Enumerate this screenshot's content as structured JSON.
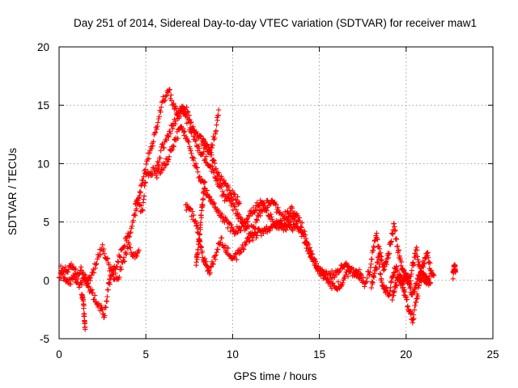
{
  "chart_data": {
    "type": "scatter",
    "title": "Day 251 of 2014, Sidereal Day-to-day VTEC variation (SDTVAR) for receiver maw1",
    "xlabel": "GPS time / hours",
    "ylabel": "SDTVAR / TECUs",
    "xlim": [
      0,
      25
    ],
    "ylim": [
      -5,
      20
    ],
    "xticks": [
      "0",
      "5",
      "10",
      "15",
      "20",
      "25"
    ],
    "yticks": [
      "-5",
      "0",
      "5",
      "10",
      "15",
      "20"
    ],
    "grid": true,
    "marker": "plus",
    "color": "#ff0000",
    "series": [
      {
        "name": "SDTVAR",
        "tracks": [
          [
            [
              0.0,
              0.6
            ],
            [
              0.3,
              0.2
            ],
            [
              0.6,
              -0.3
            ],
            [
              0.9,
              0.4
            ],
            [
              1.2,
              -0.6
            ],
            [
              1.5,
              0.2
            ],
            [
              1.8,
              -0.8
            ],
            [
              2.1,
              -1.6
            ],
            [
              2.4,
              -2.4
            ],
            [
              2.6,
              -3.2
            ],
            [
              2.8,
              -1.0
            ],
            [
              3.0,
              0.6
            ],
            [
              3.3,
              1.2
            ],
            [
              3.6,
              2.6
            ],
            [
              3.9,
              3.6
            ],
            [
              4.2,
              4.4
            ],
            [
              4.5,
              6.6
            ],
            [
              4.8,
              6.0
            ],
            [
              5.0,
              9.0
            ],
            [
              5.3,
              9.2
            ],
            [
              5.6,
              9.6
            ],
            [
              5.9,
              11.2
            ],
            [
              6.2,
              12.0
            ],
            [
              6.5,
              13.2
            ],
            [
              6.8,
              14.0
            ],
            [
              7.1,
              14.6
            ],
            [
              7.4,
              13.6
            ],
            [
              7.7,
              12.6
            ],
            [
              8.0,
              11.4
            ],
            [
              8.3,
              10.8
            ],
            [
              8.6,
              10.0
            ],
            [
              8.9,
              9.4
            ],
            [
              9.2,
              8.2
            ],
            [
              9.5,
              7.2
            ],
            [
              9.8,
              6.8
            ],
            [
              10.1,
              6.2
            ],
            [
              10.4,
              5.2
            ],
            [
              10.7,
              4.6
            ],
            [
              11.0,
              4.2
            ],
            [
              11.3,
              4.8
            ],
            [
              11.6,
              5.8
            ],
            [
              11.9,
              6.4
            ],
            [
              12.2,
              6.8
            ],
            [
              12.5,
              6.2
            ],
            [
              12.8,
              5.4
            ],
            [
              13.1,
              5.6
            ],
            [
              13.4,
              6.0
            ],
            [
              13.7,
              5.6
            ],
            [
              14.0,
              4.6
            ],
            [
              14.3,
              3.2
            ],
            [
              14.6,
              2.0
            ],
            [
              14.9,
              1.0
            ],
            [
              15.2,
              0.6
            ],
            [
              15.5,
              0.4
            ],
            [
              15.8,
              0.5
            ],
            [
              16.1,
              0.6
            ],
            [
              16.4,
              1.4
            ],
            [
              16.7,
              1.2
            ]
          ],
          [
            [
              0.1,
              1.2
            ],
            [
              0.4,
              0.8
            ],
            [
              0.7,
              1.4
            ],
            [
              1.0,
              0.6
            ],
            [
              1.3,
              1.0
            ],
            [
              1.6,
              -0.2
            ],
            [
              1.9,
              0.4
            ],
            [
              2.2,
              1.8
            ],
            [
              2.5,
              2.8
            ],
            [
              2.8,
              1.6
            ],
            [
              3.1,
              0.4
            ],
            [
              3.4,
              0.2
            ],
            [
              3.7,
              1.6
            ],
            [
              4.0,
              3.0
            ],
            [
              4.3,
              2.0
            ],
            [
              4.6,
              2.6
            ]
          ],
          [
            [
              1.3,
              -1.2
            ],
            [
              1.4,
              -2.0
            ],
            [
              1.45,
              -3.0
            ],
            [
              1.5,
              -4.2
            ]
          ],
          [
            [
              4.4,
              6.6
            ],
            [
              4.6,
              7.2
            ],
            [
              4.8,
              8.4
            ],
            [
              5.1,
              10.4
            ],
            [
              5.4,
              11.8
            ],
            [
              5.7,
              13.6
            ],
            [
              6.0,
              15.4
            ],
            [
              6.3,
              16.4
            ],
            [
              6.6,
              15.0
            ],
            [
              6.9,
              14.2
            ],
            [
              7.2,
              15.0
            ],
            [
              7.5,
              14.0
            ],
            [
              7.8,
              12.8
            ],
            [
              8.1,
              12.2
            ],
            [
              8.4,
              11.6
            ],
            [
              8.7,
              11.0
            ],
            [
              9.0,
              12.6
            ],
            [
              9.2,
              14.6
            ]
          ],
          [
            [
              5.6,
              9.0
            ],
            [
              5.9,
              9.6
            ],
            [
              6.2,
              10.2
            ],
            [
              6.5,
              11.4
            ],
            [
              6.8,
              12.4
            ],
            [
              7.1,
              13.2
            ],
            [
              7.4,
              12.0
            ],
            [
              7.7,
              10.6
            ],
            [
              8.0,
              9.2
            ],
            [
              8.3,
              8.2
            ],
            [
              8.6,
              7.2
            ],
            [
              8.9,
              6.6
            ],
            [
              9.2,
              6.0
            ],
            [
              9.5,
              5.2
            ],
            [
              9.8,
              4.6
            ],
            [
              10.1,
              4.2
            ],
            [
              10.4,
              4.4
            ],
            [
              10.7,
              5.0
            ],
            [
              11.0,
              5.6
            ],
            [
              11.3,
              6.2
            ],
            [
              11.6,
              6.6
            ],
            [
              11.9,
              6.2
            ],
            [
              12.2,
              5.4
            ],
            [
              12.5,
              4.8
            ],
            [
              12.8,
              4.6
            ],
            [
              13.1,
              5.0
            ],
            [
              13.4,
              5.4
            ],
            [
              13.7,
              5.0
            ]
          ],
          [
            [
              7.3,
              6.4
            ],
            [
              7.6,
              5.8
            ],
            [
              7.9,
              4.8
            ],
            [
              8.1,
              3.4
            ],
            [
              8.3,
              2.0
            ],
            [
              8.5,
              1.2
            ],
            [
              8.7,
              0.8
            ],
            [
              9.0,
              2.0
            ],
            [
              9.3,
              3.6
            ],
            [
              9.6,
              2.8
            ],
            [
              9.9,
              2.2
            ],
            [
              10.2,
              2.0
            ],
            [
              10.5,
              2.6
            ],
            [
              10.8,
              3.2
            ],
            [
              11.1,
              3.6
            ],
            [
              11.4,
              4.0
            ],
            [
              11.7,
              4.2
            ],
            [
              12.0,
              4.4
            ],
            [
              12.3,
              4.6
            ],
            [
              12.6,
              4.8
            ],
            [
              12.9,
              4.6
            ],
            [
              13.2,
              4.4
            ],
            [
              13.5,
              4.6
            ],
            [
              13.8,
              4.4
            ],
            [
              14.1,
              3.6
            ],
            [
              14.4,
              2.4
            ],
            [
              14.7,
              1.6
            ],
            [
              15.0,
              0.8
            ],
            [
              15.3,
              0.2
            ],
            [
              15.6,
              -0.4
            ],
            [
              15.9,
              -0.6
            ],
            [
              16.2,
              -0.4
            ],
            [
              16.5,
              0.4
            ],
            [
              16.8,
              0.8
            ],
            [
              17.1,
              0.6
            ],
            [
              17.4,
              0.2
            ]
          ],
          [
            [
              8.3,
              12.0
            ],
            [
              8.6,
              11.2
            ],
            [
              8.9,
              10.4
            ],
            [
              9.2,
              9.0
            ],
            [
              9.5,
              8.4
            ],
            [
              9.8,
              7.6
            ],
            [
              10.1,
              7.2
            ],
            [
              10.4,
              6.6
            ]
          ],
          [
            [
              7.9,
              1.6
            ],
            [
              8.0,
              2.4
            ],
            [
              8.1,
              4.0
            ],
            [
              8.2,
              5.6
            ],
            [
              8.3,
              7.0
            ],
            [
              8.4,
              8.4
            ]
          ],
          [
            [
              17.0,
              0.4
            ],
            [
              17.3,
              0.6
            ],
            [
              17.6,
              -0.2
            ],
            [
              17.9,
              0.8
            ],
            [
              18.1,
              2.6
            ],
            [
              18.3,
              3.8
            ],
            [
              18.5,
              2.2
            ],
            [
              18.7,
              1.0
            ],
            [
              18.9,
              1.6
            ],
            [
              19.1,
              3.2
            ],
            [
              19.3,
              4.8
            ],
            [
              19.5,
              2.8
            ],
            [
              19.7,
              1.4
            ],
            [
              19.9,
              0.6
            ],
            [
              20.1,
              0.0
            ],
            [
              20.3,
              -1.2
            ],
            [
              20.5,
              -0.6
            ],
            [
              20.7,
              0.2
            ],
            [
              20.9,
              0.6
            ],
            [
              21.1,
              0.0
            ],
            [
              21.3,
              -0.4
            ]
          ],
          [
            [
              18.0,
              -0.4
            ],
            [
              18.2,
              0.6
            ],
            [
              18.4,
              1.8
            ],
            [
              18.6,
              -0.2
            ],
            [
              18.8,
              -0.8
            ],
            [
              19.0,
              -1.2
            ],
            [
              19.2,
              0.0
            ],
            [
              19.4,
              1.2
            ],
            [
              19.6,
              0.2
            ],
            [
              19.8,
              -0.6
            ],
            [
              20.0,
              -1.6
            ],
            [
              20.2,
              -2.6
            ],
            [
              20.4,
              -3.4
            ],
            [
              20.6,
              -1.6
            ],
            [
              20.8,
              -0.2
            ],
            [
              21.0,
              0.6
            ],
            [
              21.2,
              0.2
            ],
            [
              21.4,
              -0.2
            ]
          ],
          [
            [
              19.2,
              -1.4
            ],
            [
              19.4,
              -0.4
            ],
            [
              19.6,
              0.4
            ],
            [
              19.8,
              -0.2
            ],
            [
              20.0,
              0.4
            ],
            [
              20.2,
              -0.2
            ],
            [
              20.4,
              1.4
            ],
            [
              20.6,
              2.6
            ],
            [
              20.8,
              0.8
            ],
            [
              21.0,
              1.4
            ],
            [
              21.2,
              2.4
            ],
            [
              21.4,
              1.0
            ],
            [
              21.6,
              0.4
            ]
          ],
          [
            [
              22.7,
              0.4
            ],
            [
              22.75,
              0.9
            ],
            [
              22.8,
              1.3
            ],
            [
              22.85,
              0.7
            ]
          ]
        ]
      }
    ]
  }
}
